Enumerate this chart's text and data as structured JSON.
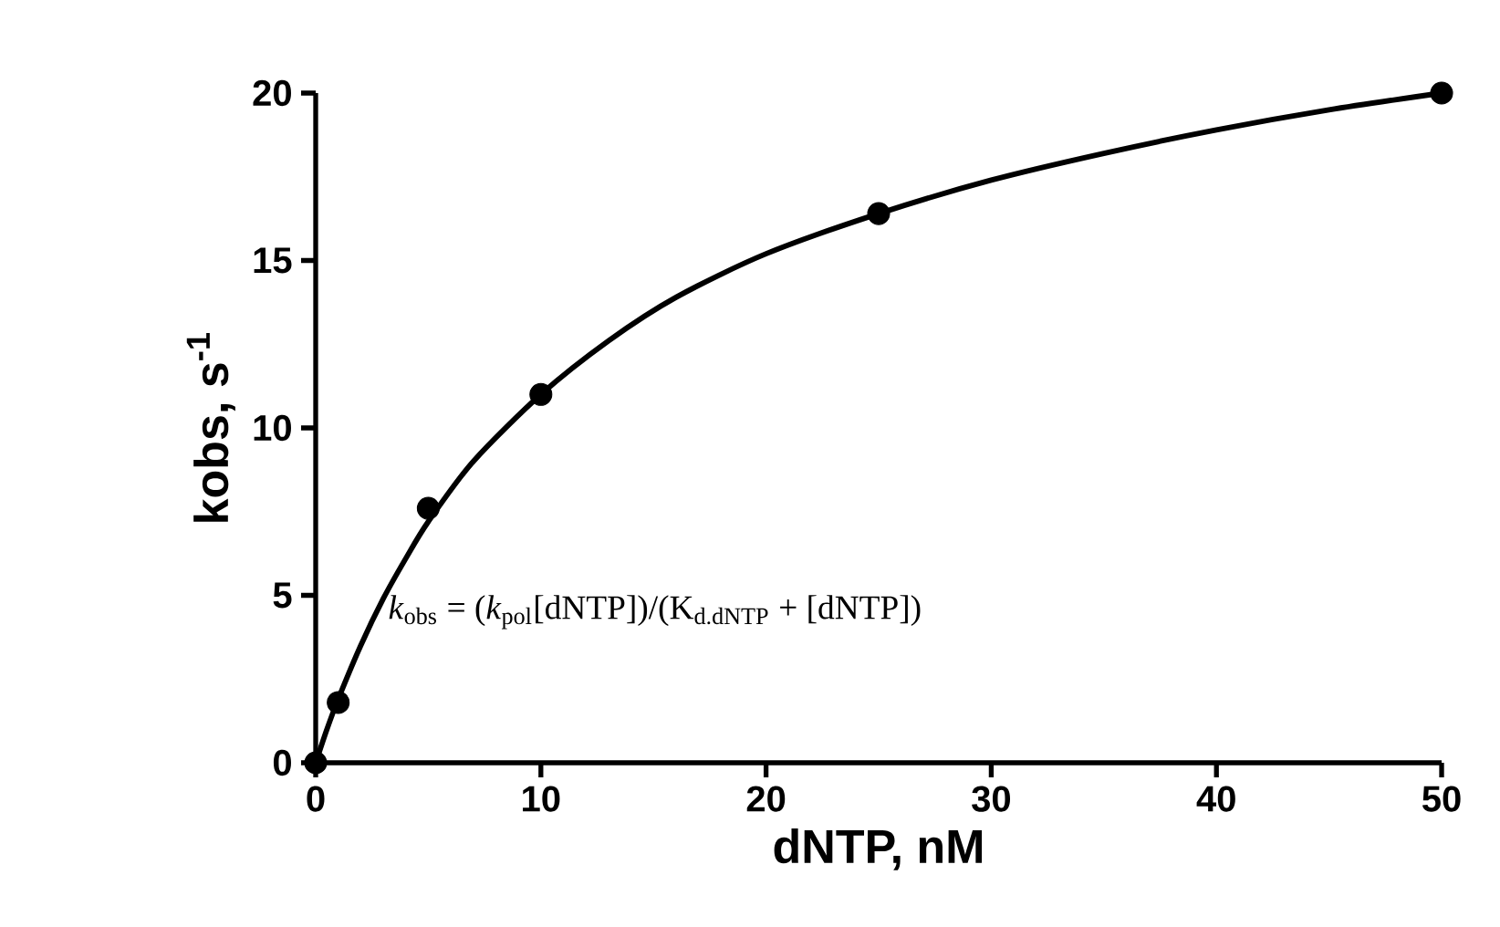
{
  "chart_data": {
    "type": "line",
    "xlabel": "dNTP, nM",
    "ylabel": "kobs, s$^{-1}$",
    "xlim": [
      0,
      50
    ],
    "ylim": [
      0,
      20
    ],
    "xticks": [
      0,
      10,
      20,
      30,
      40,
      50
    ],
    "yticks": [
      0,
      5,
      10,
      15,
      20
    ],
    "series": [
      {
        "type": "scatter",
        "marker": "circle",
        "color": "#000000",
        "x": [
          0,
          1,
          5,
          10,
          25,
          50
        ],
        "values": [
          0,
          1.8,
          7.6,
          11.0,
          16.4,
          20.0
        ]
      },
      {
        "color": "#000000",
        "line_style": "solid",
        "x": [
          0,
          0.5,
          1,
          2,
          3,
          4,
          5,
          7,
          10,
          13,
          16,
          20,
          25,
          30,
          35,
          40,
          45,
          50
        ],
        "values": [
          0,
          1.0,
          1.9,
          3.5,
          4.9,
          6.1,
          7.2,
          9.0,
          11.0,
          12.6,
          13.9,
          15.2,
          16.4,
          17.4,
          18.2,
          18.9,
          19.5,
          20.0
        ]
      }
    ],
    "annotations": [
      {
        "text": "*k*$_{obs}$ = (*k*$_{pol}$[dNTP])/(K$_{d.dNTP}$ + [dNTP])",
        "x": 3.2,
        "y": 4.5
      }
    ]
  }
}
